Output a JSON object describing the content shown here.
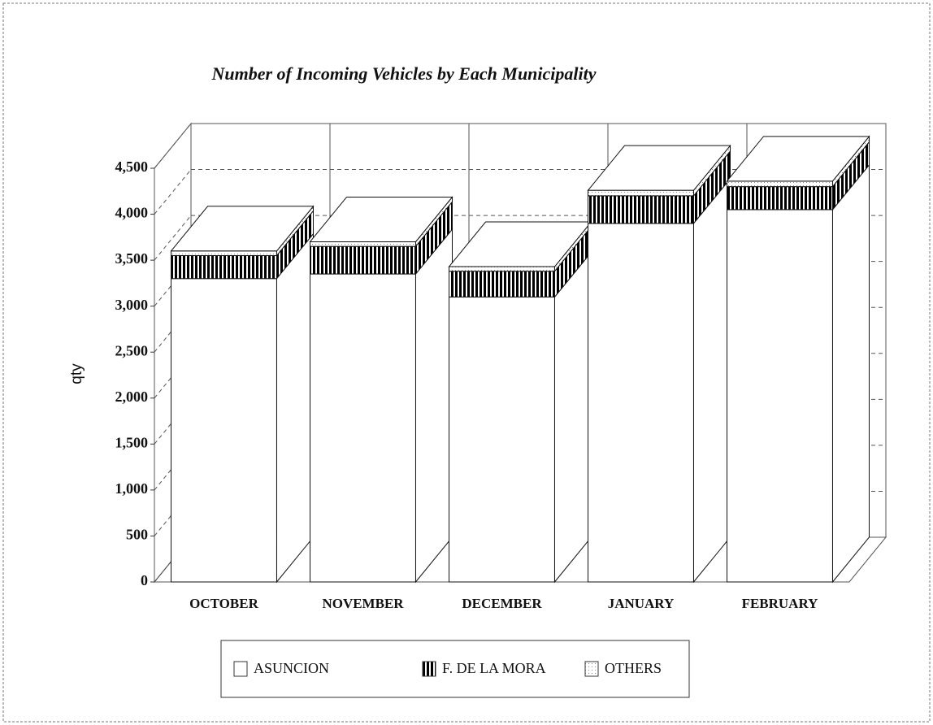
{
  "chart_data": {
    "type": "bar3d_stacked",
    "title": "Number of Incoming Vehicles by Each Municipality",
    "ylabel": "qty",
    "categories": [
      "OCTOBER",
      "NOVEMBER",
      "DECEMBER",
      "JANUARY",
      "FEBRUARY"
    ],
    "series": [
      {
        "name": "ASUNCION",
        "color": "#ffffff",
        "values": [
          3300,
          3350,
          3100,
          3900,
          4050
        ]
      },
      {
        "name": "F. DE LA MORA",
        "color": "#000000",
        "values": [
          250,
          300,
          280,
          300,
          250
        ]
      },
      {
        "name": "OTHERS",
        "color": "#e8e8e8",
        "values": [
          50,
          50,
          50,
          60,
          60
        ]
      }
    ],
    "ylim": [
      0,
      4500
    ],
    "yticks": [
      0,
      500,
      {
        "value": 1000,
        "label": "1,000"
      },
      {
        "value": 1500,
        "label": "1,500"
      },
      {
        "value": 2000,
        "label": "2,000"
      },
      {
        "value": 2500,
        "label": "2,500"
      },
      {
        "value": 3000,
        "label": "3,000"
      },
      {
        "value": 3500,
        "label": "3,500"
      },
      {
        "value": 4000,
        "label": "4,000"
      },
      {
        "value": 4500,
        "label": "4,500"
      }
    ],
    "grid": true,
    "legend": "bottom"
  }
}
